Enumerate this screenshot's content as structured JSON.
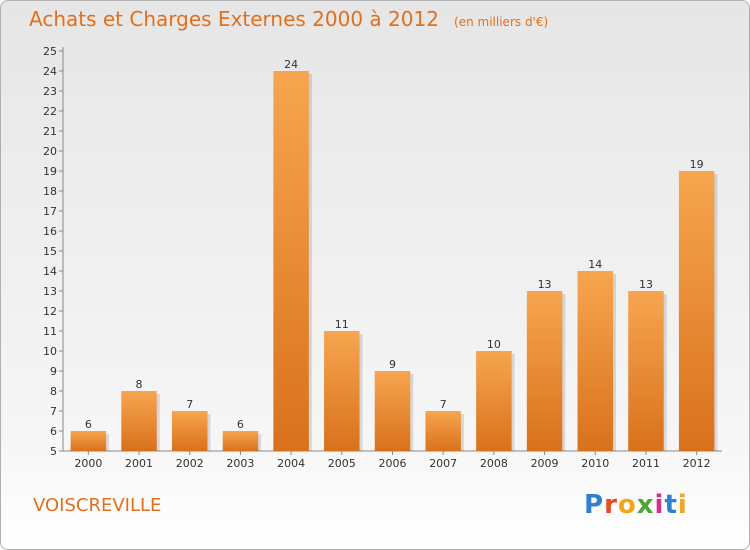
{
  "header": {
    "title": "Achats et Charges Externes 2000 à 2012",
    "unit": "(en milliers d'€)"
  },
  "footer": {
    "city": "VOISCREVILLE",
    "logo_text": "Proxiti"
  },
  "colors": {
    "bar_top": "#f7a54f",
    "bar_bottom": "#d9711c",
    "accent": "#e0701e",
    "logo": [
      "#2f80d0",
      "#e54b1f",
      "#f2a61c",
      "#4aa832",
      "#d12f8a",
      "#2f80d0",
      "#f2a61c"
    ]
  },
  "chart_data": {
    "type": "bar",
    "title": "Achats et Charges Externes 2000 à 2012",
    "subtitle": "(en milliers d'€)",
    "xlabel": "",
    "ylabel": "",
    "categories": [
      "2000",
      "2001",
      "2002",
      "2003",
      "2004",
      "2005",
      "2006",
      "2007",
      "2008",
      "2009",
      "2010",
      "2011",
      "2012"
    ],
    "values": [
      6,
      8,
      7,
      6,
      24,
      11,
      9,
      7,
      10,
      13,
      14,
      13,
      19
    ],
    "ylim": [
      5,
      25
    ],
    "yticks": [
      "5",
      "6",
      "7",
      "8",
      "9",
      "10",
      "11",
      "12",
      "13",
      "14",
      "15",
      "16",
      "17",
      "18",
      "19",
      "20",
      "21",
      "22",
      "23",
      "24",
      "25"
    ],
    "grid": false,
    "legend": "none",
    "data_labels": true
  }
}
